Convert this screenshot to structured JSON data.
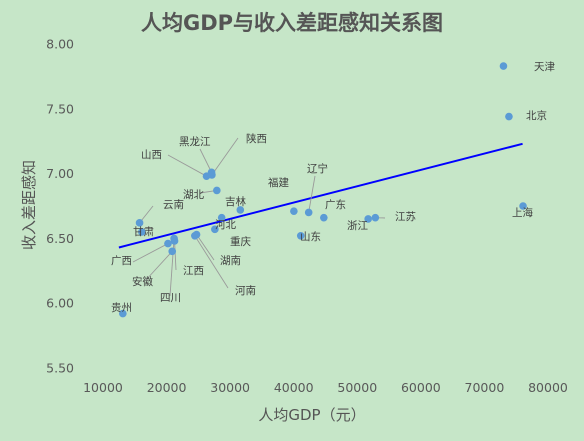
{
  "chart_data": {
    "type": "scatter",
    "title": "人均GDP与收入差距感知关系图",
    "xlabel": "人均GDP（元）",
    "ylabel": "收入差距感知",
    "xlim": [
      10000,
      80000
    ],
    "ylim": [
      5.5,
      8.0
    ],
    "xticks": [
      10000,
      20000,
      30000,
      40000,
      50000,
      60000,
      70000,
      80000
    ],
    "yticks": [
      5.5,
      6.0,
      6.5,
      7.0,
      7.5,
      8.0
    ],
    "ytick_labels": [
      "5.50",
      "6.00",
      "6.50",
      "7.00",
      "7.50",
      "8.00"
    ],
    "xtick_labels": [
      "10000",
      "20000",
      "30000",
      "40000",
      "50000",
      "60000",
      "70000",
      "80000"
    ],
    "grid": false,
    "legend": "none",
    "marker_color": "#5b9bd5",
    "trendline": {
      "type": "linear",
      "x": [
        12500,
        76000
      ],
      "y": [
        6.43,
        7.23
      ],
      "color": "#0000ff"
    },
    "points": [
      {
        "label": "天津",
        "x": 72994,
        "y": 7.83
      },
      {
        "label": "北京",
        "x": 73856,
        "y": 7.44
      },
      {
        "label": "上海",
        "x": 76074,
        "y": 6.75
      },
      {
        "label": "江苏",
        "x": 52840,
        "y": 6.66
      },
      {
        "label": "浙江",
        "x": 51711,
        "y": 6.65
      },
      {
        "label": "广东",
        "x": 44736,
        "y": 6.66
      },
      {
        "label": "山东",
        "x": 41106,
        "y": 6.52
      },
      {
        "label": "辽宁",
        "x": 42355,
        "y": 6.7
      },
      {
        "label": "福建",
        "x": 40025,
        "y": 6.71
      },
      {
        "label": "吉林",
        "x": 31599,
        "y": 6.72
      },
      {
        "label": "河北",
        "x": 28668,
        "y": 6.66
      },
      {
        "label": "重庆",
        "x": 27596,
        "y": 6.57
      },
      {
        "label": "湖北",
        "x": 27906,
        "y": 6.87
      },
      {
        "label": "陕西",
        "x": 27133,
        "y": 6.99
      },
      {
        "label": "黑龙江",
        "x": 27076,
        "y": 7.01
      },
      {
        "label": "山西",
        "x": 26283,
        "y": 6.98
      },
      {
        "label": "湖南",
        "x": 24719,
        "y": 6.53
      },
      {
        "label": "河南",
        "x": 24446,
        "y": 6.52
      },
      {
        "label": "江西",
        "x": 21253,
        "y": 6.48
      },
      {
        "label": "四川",
        "x": 21182,
        "y": 6.5
      },
      {
        "label": "安徽",
        "x": 20888,
        "y": 6.4
      },
      {
        "label": "广西",
        "x": 20219,
        "y": 6.46
      },
      {
        "label": "甘肃",
        "x": 16113,
        "y": 6.55
      },
      {
        "label": "云南",
        "x": 15752,
        "y": 6.62
      },
      {
        "label": "贵州",
        "x": 13119,
        "y": 5.92
      }
    ]
  }
}
